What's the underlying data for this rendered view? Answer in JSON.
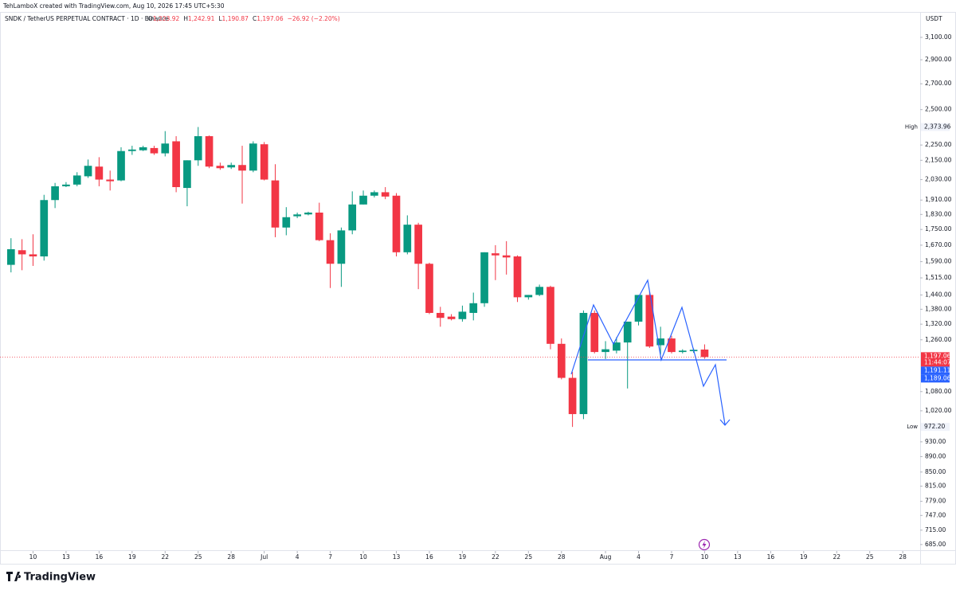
{
  "watermark": "TehLamboX created with TradingView.com, Aug 10, 2026 17:45 UTC+5:30",
  "footer": {
    "brand": "TradingView"
  },
  "chart_data": {
    "type": "candlestick",
    "title": "SNDK / TetherUS PERPETUAL CONTRACT · 1D · Binance",
    "legend_values": [
      {
        "key": "O",
        "value": "1,223.92"
      },
      {
        "key": "H",
        "value": "1,242.91"
      },
      {
        "key": "L",
        "value": "1,190.87"
      },
      {
        "key": "C",
        "value": "1,197.06"
      },
      {
        "key": "",
        "value": "−26.92 (−2.20%)"
      }
    ],
    "currency": "USDT",
    "up_color": "#089981",
    "down_color": "#f23645",
    "log_scale": true,
    "grid": false,
    "x": [
      "2026-06-08",
      "2026-06-09",
      "2026-06-10",
      "2026-06-11",
      "2026-06-12",
      "2026-06-13",
      "2026-06-14",
      "2026-06-15",
      "2026-06-16",
      "2026-06-17",
      "2026-06-18",
      "2026-06-19",
      "2026-06-20",
      "2026-06-21",
      "2026-06-22",
      "2026-06-23",
      "2026-06-24",
      "2026-06-25",
      "2026-06-26",
      "2026-06-27",
      "2026-06-28",
      "2026-06-29",
      "2026-06-30",
      "2026-07-01",
      "2026-07-02",
      "2026-07-03",
      "2026-07-04",
      "2026-07-05",
      "2026-07-06",
      "2026-07-07",
      "2026-07-08",
      "2026-07-09",
      "2026-07-10",
      "2026-07-11",
      "2026-07-12",
      "2026-07-13",
      "2026-07-14",
      "2026-07-15",
      "2026-07-16",
      "2026-07-17",
      "2026-07-18",
      "2026-07-19",
      "2026-07-20",
      "2026-07-21",
      "2026-07-22",
      "2026-07-23",
      "2026-07-24",
      "2026-07-25",
      "2026-07-26",
      "2026-07-27",
      "2026-07-28",
      "2026-07-29",
      "2026-07-30",
      "2026-07-31",
      "2026-08-01",
      "2026-08-02",
      "2026-08-03",
      "2026-08-04",
      "2026-08-05",
      "2026-08-06",
      "2026-08-07",
      "2026-08-08",
      "2026-08-09",
      "2026-08-10"
    ],
    "open": [
      1575,
      1645,
      1625,
      1615,
      1910,
      1990,
      2000,
      2050,
      2110,
      2030,
      2025,
      2210,
      2215,
      2230,
      2195,
      2275,
      1980,
      2150,
      2310,
      2115,
      2105,
      2120,
      2085,
      2255,
      2025,
      1760,
      1820,
      1830,
      1840,
      1695,
      1580,
      1745,
      1885,
      1935,
      1955,
      1935,
      1635,
      1775,
      1580,
      1365,
      1350,
      1340,
      1365,
      1405,
      1630,
      1620,
      1615,
      1430,
      1440,
      1475,
      1245,
      1125,
      1010,
      1365,
      1215,
      1220,
      1250,
      1330,
      1440,
      1240,
      1265,
      1215,
      1218,
      1223.92
    ],
    "high": [
      1705,
      1700,
      1725,
      1940,
      2010,
      2015,
      2075,
      2155,
      2170,
      2085,
      2235,
      2245,
      2245,
      2245,
      2345,
      2310,
      2150,
      2373.96,
      2315,
      2135,
      2135,
      2245,
      2275,
      2270,
      2125,
      1870,
      1840,
      1845,
      1895,
      1730,
      1760,
      1960,
      1965,
      1965,
      1985,
      1950,
      1825,
      1785,
      1585,
      1390,
      1360,
      1395,
      1450,
      1635,
      1670,
      1690,
      1620,
      1440,
      1485,
      1480,
      1265,
      1145,
      1375,
      1375,
      1255,
      1270,
      1330,
      1440,
      1455,
      1310,
      1275,
      1225,
      1228,
      1242.91
    ],
    "low": [
      1540,
      1550,
      1570,
      1595,
      1865,
      1985,
      1990,
      2040,
      1990,
      1965,
      2020,
      2185,
      2210,
      2185,
      2175,
      1955,
      1875,
      2115,
      2100,
      2090,
      2095,
      1890,
      2075,
      2025,
      1710,
      1720,
      1810,
      1825,
      1690,
      1470,
      1475,
      1725,
      1885,
      1925,
      1915,
      1615,
      1625,
      1465,
      1360,
      1310,
      1335,
      1330,
      1335,
      1390,
      1505,
      1530,
      1410,
      1420,
      1435,
      1225,
      1120,
      972.2,
      995,
      1210,
      1190,
      1210,
      1090,
      1315,
      1230,
      1205,
      1210,
      1210,
      1212,
      1190.87
    ],
    "close": [
      1650,
      1625,
      1615,
      1910,
      1990,
      2000,
      2055,
      2115,
      2030,
      2020,
      2210,
      2220,
      2235,
      2195,
      2260,
      1985,
      2150,
      2310,
      2110,
      2100,
      2120,
      2085,
      2260,
      2030,
      1760,
      1815,
      1830,
      1840,
      1695,
      1580,
      1745,
      1885,
      1935,
      1955,
      1930,
      1635,
      1775,
      1580,
      1365,
      1345,
      1340,
      1370,
      1405,
      1635,
      1620,
      1610,
      1430,
      1440,
      1475,
      1245,
      1125,
      1010,
      1365,
      1215,
      1225,
      1250,
      1330,
      1440,
      1235,
      1265,
      1215,
      1220,
      1223,
      1197.06
    ],
    "xlim": [
      "2026-06-07",
      "2026-08-29"
    ],
    "xticks": [
      {
        "value": "2026-06-10",
        "label": "10"
      },
      {
        "value": "2026-06-13",
        "label": "13"
      },
      {
        "value": "2026-06-16",
        "label": "16"
      },
      {
        "value": "2026-06-19",
        "label": "19"
      },
      {
        "value": "2026-06-22",
        "label": "22"
      },
      {
        "value": "2026-06-25",
        "label": "25"
      },
      {
        "value": "2026-06-28",
        "label": "28"
      },
      {
        "value": "2026-07-01",
        "label": "Jul"
      },
      {
        "value": "2026-07-04",
        "label": "4"
      },
      {
        "value": "2026-07-07",
        "label": "7"
      },
      {
        "value": "2026-07-10",
        "label": "10"
      },
      {
        "value": "2026-07-13",
        "label": "13"
      },
      {
        "value": "2026-07-16",
        "label": "16"
      },
      {
        "value": "2026-07-19",
        "label": "19"
      },
      {
        "value": "2026-07-22",
        "label": "22"
      },
      {
        "value": "2026-07-25",
        "label": "25"
      },
      {
        "value": "2026-07-28",
        "label": "28"
      },
      {
        "value": "2026-08-01",
        "label": "Aug"
      },
      {
        "value": "2026-08-04",
        "label": "4"
      },
      {
        "value": "2026-08-07",
        "label": "7"
      },
      {
        "value": "2026-08-10",
        "label": "10"
      },
      {
        "value": "2026-08-13",
        "label": "13"
      },
      {
        "value": "2026-08-16",
        "label": "16"
      },
      {
        "value": "2026-08-19",
        "label": "19"
      },
      {
        "value": "2026-08-22",
        "label": "22"
      },
      {
        "value": "2026-08-25",
        "label": "25"
      },
      {
        "value": "2026-08-28",
        "label": "28"
      }
    ],
    "ylim": [
      650,
      3320
    ],
    "yticks": [
      {
        "value": 3100,
        "label": "3,100.00"
      },
      {
        "value": 2900,
        "label": "2,900.00"
      },
      {
        "value": 2700,
        "label": "2,700.00"
      },
      {
        "value": 2500,
        "label": "2,500.00"
      },
      {
        "value": 2250,
        "label": "2,250.00"
      },
      {
        "value": 2150,
        "label": "2,150.00"
      },
      {
        "value": 2030,
        "label": "2,030.00"
      },
      {
        "value": 1910,
        "label": "1,910.00"
      },
      {
        "value": 1830,
        "label": "1,830.00"
      },
      {
        "value": 1750,
        "label": "1,750.00"
      },
      {
        "value": 1670,
        "label": "1,670.00"
      },
      {
        "value": 1590,
        "label": "1,590.00"
      },
      {
        "value": 1515,
        "label": "1,515.00"
      },
      {
        "value": 1440,
        "label": "1,440.00"
      },
      {
        "value": 1380,
        "label": "1,380.00"
      },
      {
        "value": 1320,
        "label": "1,320.00"
      },
      {
        "value": 1260,
        "label": "1,260.00"
      },
      {
        "value": 1080,
        "label": "1,080.00"
      },
      {
        "value": 1020,
        "label": "1,020.00"
      },
      {
        "value": 930,
        "label": "930.00"
      },
      {
        "value": 890,
        "label": "890.00"
      },
      {
        "value": 850,
        "label": "850.00"
      },
      {
        "value": 815,
        "label": "815.00"
      },
      {
        "value": 779,
        "label": "779.00"
      },
      {
        "value": 747,
        "label": "747.00"
      },
      {
        "value": 715,
        "label": "715.00"
      },
      {
        "value": 685,
        "label": "685.00"
      }
    ],
    "high_marker": {
      "label": "High",
      "value": 2373.96,
      "value_label": "2,373.96"
    },
    "low_marker": {
      "label": "Low",
      "value": 972.2,
      "value_label": "972.20"
    },
    "last_price": {
      "value": 1197.06,
      "value_label": "1,197.06",
      "countdown": "11:44:07",
      "color": "#f23645"
    },
    "quote_labels": [
      {
        "value": 1191.11,
        "label": "1,191.11"
      },
      {
        "value": 1189.06,
        "label": "1,189.06"
      }
    ],
    "quote_color": "#2962ff"
  }
}
